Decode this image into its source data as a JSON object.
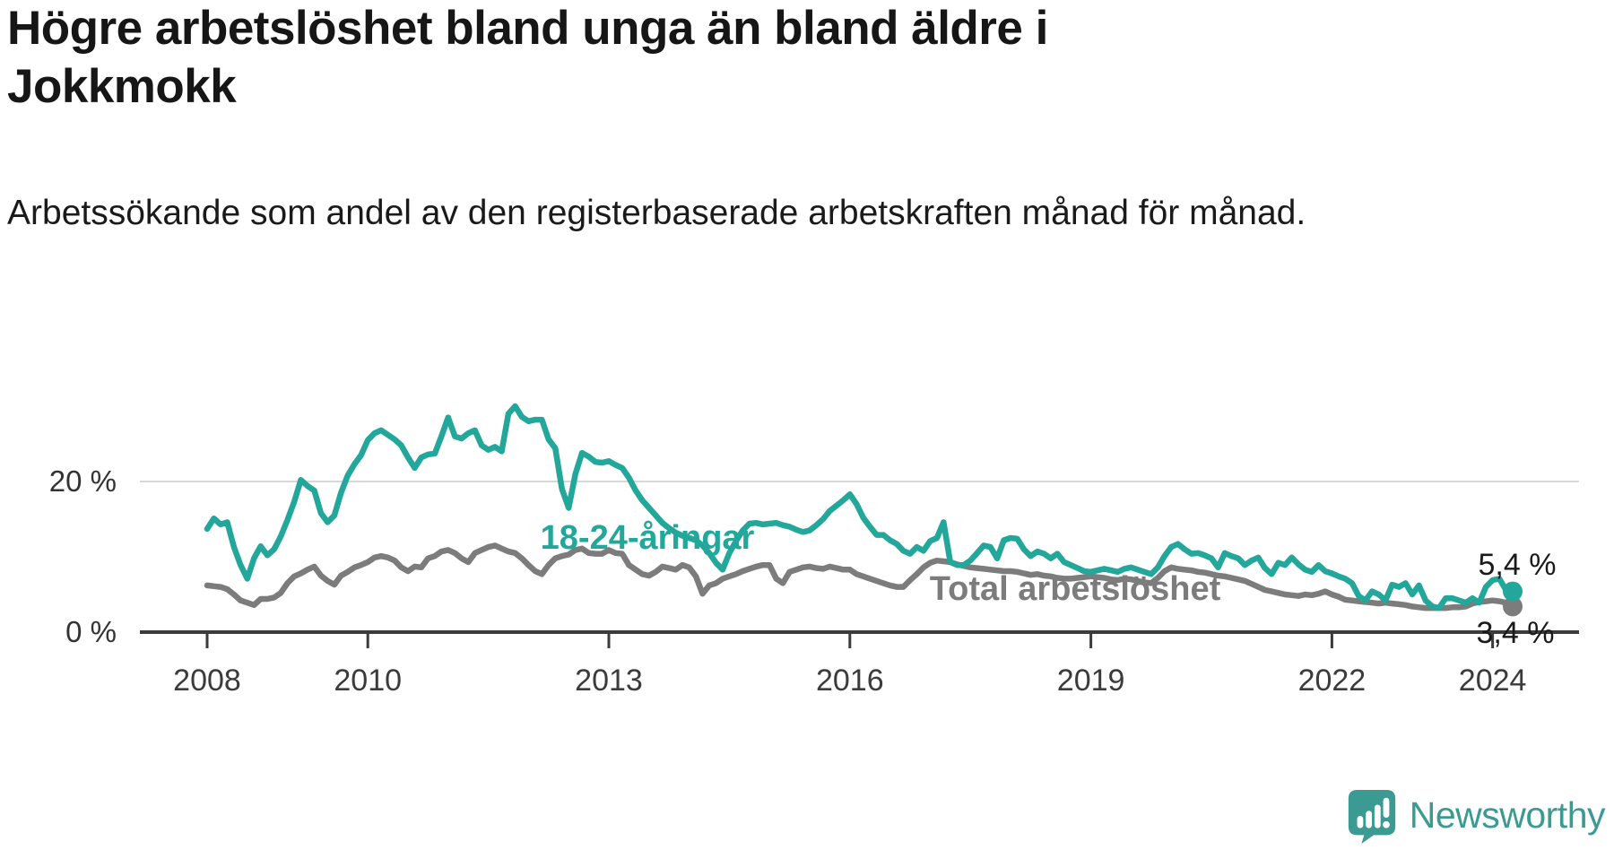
{
  "header": {
    "title": "Högre arbetslöshet bland unga än bland äldre i Jokkmokk",
    "subtitle": "Arbetssökande som andel av den registerbaserade arbetskraften månad för månad."
  },
  "chart_data": {
    "type": "line",
    "title": "Högre arbetslöshet bland unga än bland äldre i Jokkmokk",
    "subtitle": "Arbetssökande som andel av den registerbaserade arbetskraften månad för månad.",
    "unit": "%",
    "x_monthly_start": "2008-01",
    "x_monthly_end": "2024-04",
    "x_tick_years": [
      "2008",
      "2010",
      "2013",
      "2016",
      "2019",
      "2022",
      "2024"
    ],
    "y_ticks": [
      {
        "value": 0,
        "label": "0 %"
      },
      {
        "value": 20,
        "label": "20 %"
      }
    ],
    "ylim": [
      0,
      32
    ],
    "grid": "horizontal",
    "legend_position": "inline-labels",
    "series": [
      {
        "key": "total",
        "name": "Total arbetslöshet",
        "color": "#7c7c7c",
        "end_label": "3,4 %",
        "end_value": 3.4,
        "values": [
          6.2,
          6.1,
          6.0,
          5.7,
          5.0,
          4.2,
          3.9,
          3.6,
          4.4,
          4.4,
          4.6,
          5.2,
          6.5,
          7.4,
          7.8,
          8.3,
          8.7,
          7.5,
          6.8,
          6.3,
          7.5,
          8.0,
          8.6,
          8.9,
          9.3,
          9.9,
          10.1,
          9.9,
          9.5,
          8.6,
          8.1,
          8.7,
          8.6,
          9.8,
          10.1,
          10.7,
          10.9,
          10.5,
          9.8,
          9.3,
          10.5,
          10.9,
          11.3,
          11.5,
          11.1,
          10.7,
          10.5,
          9.8,
          8.9,
          8.1,
          7.7,
          8.9,
          9.8,
          10.1,
          10.3,
          10.9,
          11.1,
          10.5,
          10.4,
          10.4,
          10.9,
          10.5,
          10.4,
          8.9,
          8.3,
          7.7,
          7.5,
          8.0,
          8.7,
          8.5,
          8.3,
          8.9,
          8.6,
          7.4,
          5.1,
          6.2,
          6.5,
          7.1,
          7.4,
          7.7,
          8.1,
          8.4,
          8.7,
          8.9,
          8.9,
          7.1,
          6.5,
          8.0,
          8.3,
          8.6,
          8.7,
          8.5,
          8.4,
          8.7,
          8.5,
          8.3,
          8.3,
          7.7,
          7.4,
          7.1,
          6.8,
          6.5,
          6.2,
          6.0,
          6.0,
          6.9,
          7.7,
          8.6,
          9.2,
          9.5,
          9.4,
          9.3,
          9.0,
          8.8,
          8.6,
          8.5,
          8.4,
          8.3,
          8.2,
          8.1,
          8.1,
          8.0,
          7.8,
          7.6,
          7.7,
          7.5,
          7.4,
          7.2,
          7.1,
          7.1,
          7.2,
          7.3,
          7.4,
          7.3,
          7.2,
          7.0,
          6.9,
          7.1,
          7.0,
          6.8,
          6.6,
          6.5,
          7.2,
          8.1,
          8.6,
          8.4,
          8.3,
          8.2,
          8.0,
          7.9,
          7.7,
          7.5,
          7.4,
          7.2,
          7.0,
          6.8,
          6.4,
          6.0,
          5.6,
          5.4,
          5.2,
          5.0,
          4.9,
          4.8,
          5.0,
          4.9,
          5.1,
          5.4,
          5.0,
          4.7,
          4.3,
          4.2,
          4.1,
          4.0,
          3.9,
          3.8,
          3.9,
          3.8,
          3.7,
          3.6,
          3.4,
          3.3,
          3.2,
          3.2,
          3.2,
          3.2,
          3.3,
          3.3,
          3.4,
          3.8,
          4.0,
          4.1,
          4.2,
          4.1,
          3.9,
          3.4
        ]
      },
      {
        "key": "youth",
        "name": "18-24-åringar",
        "color": "#22a79a",
        "end_label": "5,4 %",
        "end_value": 5.4,
        "values": [
          13.7,
          15.1,
          14.3,
          14.6,
          11.3,
          8.9,
          7.1,
          9.8,
          11.4,
          10.2,
          11.0,
          12.7,
          14.9,
          17.3,
          20.2,
          19.4,
          18.8,
          15.8,
          14.6,
          15.5,
          18.5,
          20.8,
          22.3,
          23.5,
          25.5,
          26.4,
          26.8,
          26.2,
          25.6,
          24.8,
          23.2,
          21.8,
          23.2,
          23.6,
          23.7,
          26.0,
          28.5,
          26.0,
          25.7,
          26.4,
          26.8,
          24.8,
          24.2,
          24.6,
          24.0,
          29.0,
          30.0,
          28.6,
          28.0,
          28.2,
          28.2,
          25.6,
          24.4,
          19.0,
          16.5,
          21.0,
          23.8,
          23.3,
          22.6,
          22.5,
          22.7,
          22.2,
          21.8,
          20.5,
          18.8,
          17.5,
          16.5,
          15.5,
          14.5,
          13.8,
          13.2,
          12.8,
          12.5,
          12.2,
          11.5,
          10.5,
          9.2,
          8.3,
          10.5,
          12.1,
          13.5,
          14.4,
          14.5,
          14.3,
          14.4,
          14.5,
          14.2,
          14.0,
          13.6,
          13.3,
          13.5,
          14.2,
          15.0,
          16.1,
          16.8,
          17.5,
          18.3,
          17.0,
          15.2,
          14.0,
          12.9,
          12.9,
          12.2,
          11.7,
          10.8,
          10.4,
          11.3,
          10.8,
          12.1,
          12.5,
          14.6,
          9.3,
          8.9,
          8.9,
          9.5,
          10.5,
          11.5,
          11.3,
          9.8,
          12.2,
          12.5,
          12.4,
          11.0,
          10.1,
          10.7,
          10.4,
          9.8,
          10.4,
          9.3,
          8.9,
          8.5,
          8.1,
          8.0,
          8.2,
          8.4,
          8.2,
          8.0,
          8.4,
          8.6,
          8.3,
          8.0,
          7.7,
          8.6,
          10.1,
          11.3,
          11.7,
          11.0,
          10.4,
          10.5,
          10.2,
          9.8,
          8.6,
          10.5,
          10.1,
          9.8,
          8.9,
          9.5,
          9.9,
          8.5,
          7.7,
          9.2,
          8.9,
          9.9,
          9.0,
          8.3,
          8.0,
          8.9,
          8.1,
          7.8,
          7.4,
          7.1,
          6.5,
          4.8,
          4.2,
          5.4,
          5.0,
          4.2,
          6.3,
          6.0,
          6.5,
          5.0,
          6.2,
          4.2,
          3.4,
          3.2,
          4.5,
          4.5,
          4.2,
          3.9,
          4.5,
          3.9,
          6.0,
          6.9,
          7.1,
          5.6,
          5.4
        ]
      }
    ]
  },
  "branding": {
    "logo_text": "Newsworthy",
    "logo_color": "#3b9a92"
  },
  "colors": {
    "youth_line": "#22a79a",
    "total_line": "#7c7c7c",
    "axis": "#3b3b3b",
    "gridline": "#d8d8d8",
    "text": "#1a1a1a"
  }
}
